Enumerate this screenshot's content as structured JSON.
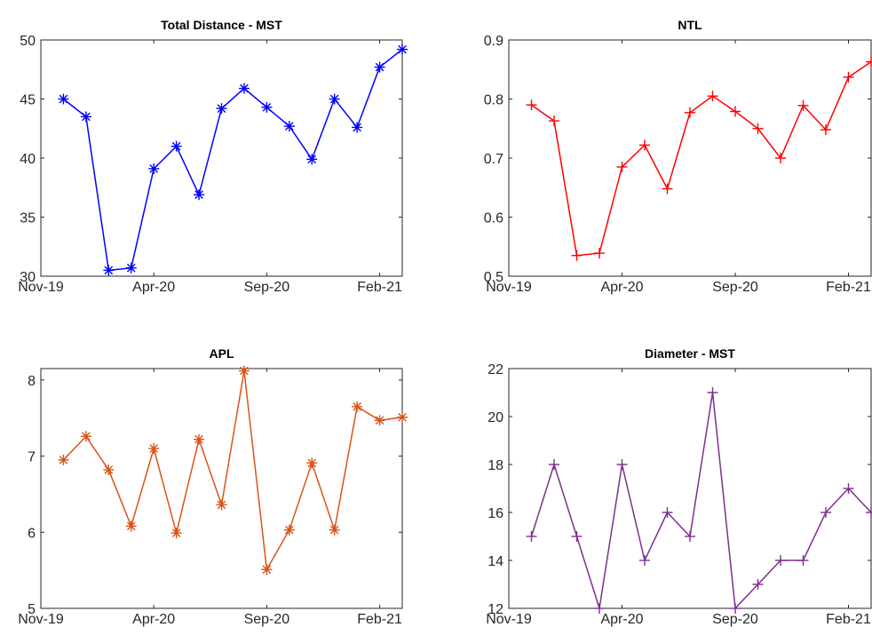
{
  "chart_data": [
    {
      "type": "line",
      "title": "Total Distance - MST",
      "xlabel": "",
      "ylabel": "",
      "x": [
        "Dec-19",
        "Jan-20",
        "Feb-20",
        "Mar-20",
        "Apr-20",
        "May-20",
        "Jun-20",
        "Jul-20",
        "Aug-20",
        "Sep-20",
        "Oct-20",
        "Nov-20",
        "Dec-20",
        "Jan-21",
        "Feb-21",
        "Mar-21"
      ],
      "x_start": "Nov-19",
      "x_end": "Mar-21",
      "xticks": [
        "Nov-19",
        "Apr-20",
        "Sep-20",
        "Feb-21"
      ],
      "series": [
        {
          "values": [
            45,
            43.5,
            30.5,
            30.7,
            39.1,
            41,
            36.9,
            44.2,
            45.9,
            44.3,
            42.7,
            39.9,
            45,
            42.6,
            47.7,
            49.2
          ]
        }
      ],
      "ylim": [
        30,
        50
      ],
      "yticks": [
        30,
        35,
        40,
        45,
        50
      ],
      "ytick_labels": [
        "30",
        "35",
        "40",
        "45",
        "50"
      ],
      "color": "#0000ff",
      "marker": "asterisk",
      "grid": false
    },
    {
      "type": "line",
      "title": "NTL",
      "xlabel": "",
      "ylabel": "",
      "x": [
        "Dec-19",
        "Jan-20",
        "Feb-20",
        "Mar-20",
        "Apr-20",
        "May-20",
        "Jun-20",
        "Jul-20",
        "Aug-20",
        "Sep-20",
        "Oct-20",
        "Nov-20",
        "Dec-20",
        "Jan-21",
        "Feb-21",
        "Mar-21"
      ],
      "x_start": "Nov-19",
      "x_end": "Mar-21",
      "xticks": [
        "Nov-19",
        "Apr-20",
        "Sep-20",
        "Feb-21"
      ],
      "series": [
        {
          "values": [
            0.79,
            0.763,
            0.535,
            0.539,
            0.685,
            0.722,
            0.648,
            0.777,
            0.805,
            0.779,
            0.75,
            0.7,
            0.789,
            0.748,
            0.837,
            0.863
          ]
        }
      ],
      "ylim": [
        0.5,
        0.9
      ],
      "yticks": [
        0.5,
        0.6,
        0.7,
        0.8,
        0.9
      ],
      "ytick_labels": [
        "0.5",
        "0.6",
        "0.7",
        "0.8",
        "0.9"
      ],
      "color": "#ff0000",
      "marker": "plus",
      "grid": false
    },
    {
      "type": "line",
      "title": "APL",
      "xlabel": "",
      "ylabel": "",
      "x": [
        "Dec-19",
        "Jan-20",
        "Feb-20",
        "Mar-20",
        "Apr-20",
        "May-20",
        "Jun-20",
        "Jul-20",
        "Aug-20",
        "Sep-20",
        "Oct-20",
        "Nov-20",
        "Dec-20",
        "Jan-21",
        "Feb-21",
        "Mar-21"
      ],
      "x_start": "Nov-19",
      "x_end": "Mar-21",
      "xticks": [
        "Nov-19",
        "Apr-20",
        "Sep-20",
        "Feb-21"
      ],
      "series": [
        {
          "values": [
            6.95,
            7.26,
            6.82,
            6.08,
            7.1,
            5.99,
            7.22,
            6.36,
            8.12,
            5.51,
            6.03,
            6.91,
            6.03,
            7.65,
            7.47,
            7.51
          ]
        }
      ],
      "ylim": [
        5,
        8.15
      ],
      "yticks": [
        5,
        6,
        7,
        8
      ],
      "ytick_labels": [
        "5",
        "6",
        "7",
        "8"
      ],
      "color": "#d95319",
      "marker": "asterisk",
      "grid": false
    },
    {
      "type": "line",
      "title": "Diameter - MST",
      "xlabel": "",
      "ylabel": "",
      "x": [
        "Dec-19",
        "Jan-20",
        "Feb-20",
        "Mar-20",
        "Apr-20",
        "May-20",
        "Jun-20",
        "Jul-20",
        "Aug-20",
        "Sep-20",
        "Oct-20",
        "Nov-20",
        "Dec-20",
        "Jan-21",
        "Feb-21",
        "Mar-21"
      ],
      "x_start": "Nov-19",
      "x_end": "Mar-21",
      "xticks": [
        "Nov-19",
        "Apr-20",
        "Sep-20",
        "Feb-21"
      ],
      "series": [
        {
          "values": [
            15,
            18,
            15,
            12,
            18,
            14,
            16,
            15,
            21,
            12,
            13,
            14,
            14,
            16,
            17,
            16
          ]
        }
      ],
      "ylim": [
        12,
        22
      ],
      "yticks": [
        12,
        14,
        16,
        18,
        20,
        22
      ],
      "ytick_labels": [
        "12",
        "14",
        "16",
        "18",
        "20",
        "22"
      ],
      "color": "#7e2f8e",
      "marker": "plus",
      "grid": false
    }
  ]
}
